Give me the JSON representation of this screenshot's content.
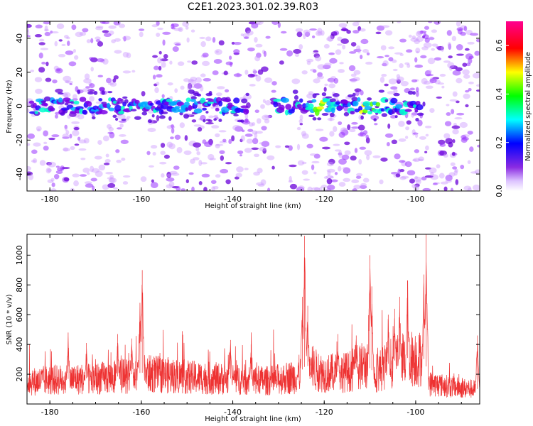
{
  "figure_title": "C2E1.2023.301.02.39.R03",
  "chart_data": [
    {
      "type": "heatmap",
      "xlabel": "Height of straight line (km)",
      "ylabel": "Frequency (Hz)",
      "xlim": [
        -185,
        -86
      ],
      "ylim": [
        -50,
        50
      ],
      "xticks": [
        -180,
        -160,
        -140,
        -120,
        -100
      ],
      "yticks": [
        -40,
        -20,
        0,
        20,
        40
      ],
      "colorbar": {
        "label": "Normalized spectral amplitude",
        "range": [
          0,
          0.7
        ],
        "ticks": [
          "0.0",
          "0.2",
          "0.4",
          "0.6"
        ],
        "colors": [
          "#ffffff",
          "#8a2be2",
          "#0000ff",
          "#00ffff",
          "#00ff00",
          "#ffff00",
          "#ff0000",
          "#ff00ff"
        ]
      },
      "features": {
        "signal_band_frequency_hz": 0,
        "signal_band_segments_km": [
          [
            -184,
            -137
          ],
          [
            -131,
            -99
          ]
        ],
        "signal_band_peak_segments_km": [
          [
            -124,
            -118
          ],
          [
            -112,
            -108
          ]
        ],
        "noise_gaps_km": [
          [
            -163,
            -158
          ],
          [
            -132,
            -126
          ],
          [
            -110,
            -107
          ]
        ]
      }
    },
    {
      "type": "line",
      "xlabel": "Height of straight line (km)",
      "ylabel": "SNR (10 * v/v)",
      "xlim": [
        -185,
        -86
      ],
      "ylim": [
        0,
        1140
      ],
      "xticks": [
        -180,
        -160,
        -140,
        -120,
        -100
      ],
      "yticks": [
        200,
        400,
        600,
        800,
        1000
      ],
      "color": "#ee3333",
      "baseline": [
        [
          -185,
          150
        ],
        [
          -180,
          165
        ],
        [
          -170,
          175
        ],
        [
          -165,
          185
        ],
        [
          -160,
          210
        ],
        [
          -155,
          200
        ],
        [
          -150,
          185
        ],
        [
          -140,
          170
        ],
        [
          -132,
          160
        ],
        [
          -126,
          190
        ],
        [
          -124,
          260
        ],
        [
          -120,
          210
        ],
        [
          -115,
          220
        ],
        [
          -111,
          270
        ],
        [
          -109,
          210
        ],
        [
          -105,
          290
        ],
        [
          -100,
          320
        ],
        [
          -98,
          300
        ],
        [
          -97,
          140
        ],
        [
          -90,
          110
        ],
        [
          -86,
          100
        ]
      ],
      "peaks": [
        {
          "x": -159.8,
          "y": 900
        },
        {
          "x": -160.3,
          "y": 680
        },
        {
          "x": -165.2,
          "y": 470
        },
        {
          "x": -162.1,
          "y": 440
        },
        {
          "x": -176.0,
          "y": 480
        },
        {
          "x": -172.0,
          "y": 410
        },
        {
          "x": -124.3,
          "y": 1130
        },
        {
          "x": -124.8,
          "y": 720
        },
        {
          "x": -123.6,
          "y": 660
        },
        {
          "x": -110.0,
          "y": 1000
        },
        {
          "x": -109.6,
          "y": 790
        },
        {
          "x": -106.0,
          "y": 600
        },
        {
          "x": -103.5,
          "y": 720
        },
        {
          "x": -101.8,
          "y": 830
        },
        {
          "x": -104.6,
          "y": 640
        },
        {
          "x": -97.7,
          "y": 1140
        },
        {
          "x": -98.2,
          "y": 870
        },
        {
          "x": -140.5,
          "y": 430
        },
        {
          "x": -136.0,
          "y": 400
        },
        {
          "x": -117.0,
          "y": 470
        },
        {
          "x": -113.0,
          "y": 460
        },
        {
          "x": -86.5,
          "y": 460
        }
      ]
    }
  ]
}
